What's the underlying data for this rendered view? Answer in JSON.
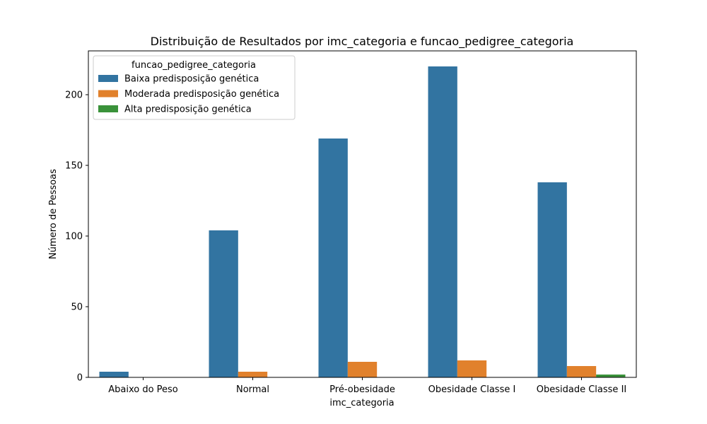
{
  "chart_data": {
    "type": "bar",
    "title": "Distribuição de Resultados por imc_categoria e funcao_pedigree_categoria",
    "xlabel": "imc_categoria",
    "ylabel": "Número de Pessoas",
    "categories": [
      "Abaixo do Peso",
      "Normal",
      "Pré-obesidade",
      "Obesidade Classe I",
      "Obesidade Classe II"
    ],
    "series": [
      {
        "name": "Baixa predisposição genética",
        "color": "#3274a1",
        "values": [
          4,
          104,
          169,
          220,
          138
        ]
      },
      {
        "name": "Moderada predisposição genética",
        "color": "#e1812c",
        "values": [
          0,
          4,
          11,
          12,
          8
        ]
      },
      {
        "name": "Alta predisposição genética",
        "color": "#3a923a",
        "values": [
          0,
          0,
          0,
          0,
          2
        ]
      }
    ],
    "ylim": [
      0,
      231
    ],
    "yticks": [
      0,
      50,
      100,
      150,
      200
    ],
    "legend": {
      "title": "funcao_pedigree_categoria",
      "placement": "top-left"
    },
    "grid": false
  }
}
